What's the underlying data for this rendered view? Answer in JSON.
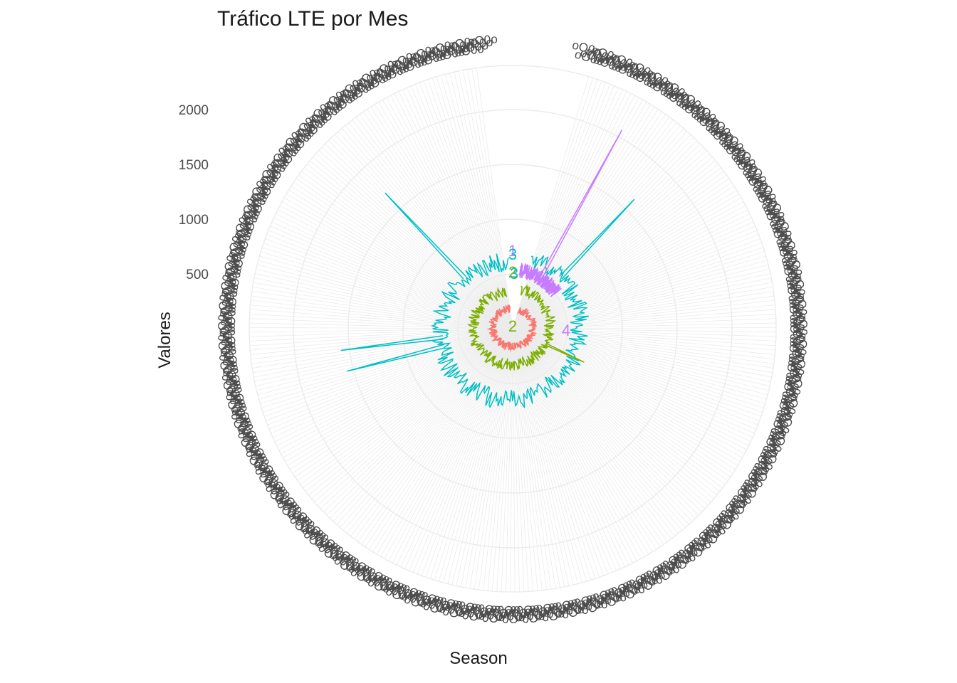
{
  "chart_data": {
    "type": "line",
    "coord": "polar",
    "title": "Tráfico LTE por Mes",
    "xlabel": "Season",
    "ylabel": "Valores",
    "y_ticks": [
      500,
      1000,
      1500,
      2000
    ],
    "y_ticks_text": [
      "500",
      "1000",
      "1500",
      "2000"
    ],
    "ylim": [
      0,
      2200
    ],
    "grid": true,
    "legend": "none",
    "n_categories": 365,
    "category_label_text": "Season",
    "series": [
      {
        "name": "1",
        "color": "#F8766D",
        "radius_start": 270,
        "radius_end": 310,
        "base": 175,
        "amp": 40,
        "phase_start": 0.05,
        "phase_end": 0.98,
        "label_angle_frac": 0.0
      },
      {
        "name": "2",
        "color": "#7CAE00",
        "radius_start": 340,
        "radius_end": 400,
        "base": 340,
        "amp": 55,
        "phase_start": 0.03,
        "phase_end": 0.97,
        "label_angle_frac": 0.0
      },
      {
        "name": "3",
        "color": "#00BFC4",
        "radius_start": 640,
        "radius_end": 700,
        "base": 640,
        "amp": 90,
        "phase_start": 0.04,
        "phase_end": 0.99,
        "label_angle_frac": 0.0
      },
      {
        "name": "4",
        "color": "#C77CFF",
        "radius_start": 500,
        "radius_end": 560,
        "base": 540,
        "amp": 70,
        "phase_start": 0.02,
        "phase_end": 0.14,
        "label_angle_frac": 0.0
      }
    ],
    "series_labels_shown": [
      "1",
      "3",
      "2",
      "3",
      "2",
      "4"
    ],
    "spikes": [
      {
        "series": "3",
        "frac": 0.12,
        "value": 1620
      },
      {
        "series": "3",
        "frac": 0.73,
        "value": 1580
      },
      {
        "series": "3",
        "frac": 0.71,
        "value": 1560
      },
      {
        "series": "3",
        "frac": 0.88,
        "value": 1700
      },
      {
        "series": "4",
        "frac": 0.08,
        "value": 2070
      },
      {
        "series": "2",
        "frac": 0.32,
        "value": 720
      }
    ]
  }
}
